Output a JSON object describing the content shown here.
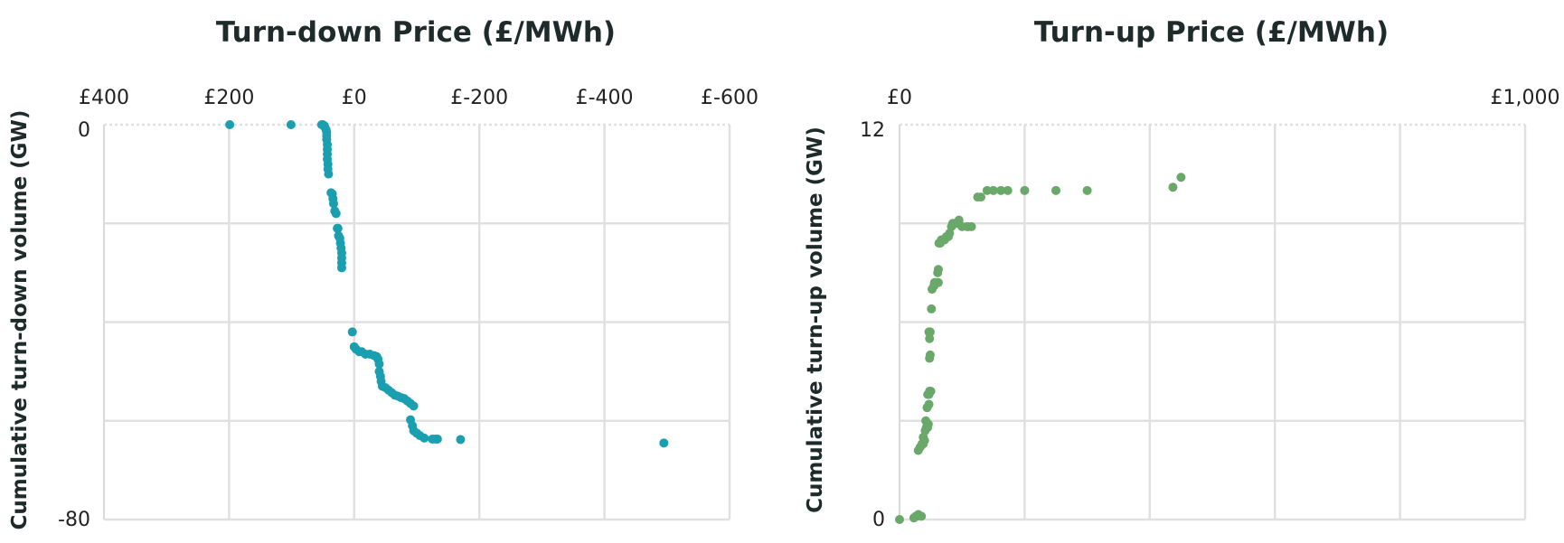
{
  "chart_data": [
    {
      "type": "scatter",
      "title": "Turn-down Price (£/MWh)",
      "ylabel": "Cumulative turn-down volume (GW)",
      "xlim": [
        400,
        -600
      ],
      "x_reversed": true,
      "ylim": [
        -80,
        0
      ],
      "x_ticks": [
        400,
        200,
        0,
        -200,
        -400,
        -600
      ],
      "x_tick_labels": [
        "£400",
        "£200",
        "£0",
        "£-200",
        "£-400",
        "£-600"
      ],
      "y_tick_labels": [
        "0",
        "-80"
      ],
      "grid": true,
      "color": "#1a9fb1",
      "points": [
        [
          199,
          0
        ],
        [
          101,
          0
        ],
        [
          52,
          0
        ],
        [
          50,
          0
        ],
        [
          48,
          -0.2
        ],
        [
          47,
          -0.5
        ],
        [
          45,
          -1
        ],
        [
          44,
          -1.5
        ],
        [
          44,
          -2.2
        ],
        [
          44,
          -3
        ],
        [
          43,
          -4
        ],
        [
          43,
          -5
        ],
        [
          43,
          -6
        ],
        [
          43,
          -7
        ],
        [
          42,
          -8
        ],
        [
          42,
          -9
        ],
        [
          41,
          -10
        ],
        [
          37,
          -13.8
        ],
        [
          35,
          -14
        ],
        [
          34,
          -15
        ],
        [
          33,
          -16
        ],
        [
          31,
          -17.5
        ],
        [
          29,
          -18
        ],
        [
          27,
          -21
        ],
        [
          26,
          -21
        ],
        [
          25,
          -22.5
        ],
        [
          23,
          -23
        ],
        [
          22,
          -24
        ],
        [
          21,
          -25
        ],
        [
          20,
          -26
        ],
        [
          20,
          -27
        ],
        [
          20,
          -28
        ],
        [
          20,
          -29
        ],
        [
          3,
          -42
        ],
        [
          0,
          -45
        ],
        [
          -3,
          -45.5
        ],
        [
          -8,
          -46
        ],
        [
          -12,
          -46
        ],
        [
          -18,
          -46.5
        ],
        [
          -25,
          -46.5
        ],
        [
          -32,
          -46.8
        ],
        [
          -36,
          -47
        ],
        [
          -38,
          -47.5
        ],
        [
          -40,
          -48.5
        ],
        [
          -40,
          -50
        ],
        [
          -42,
          -51
        ],
        [
          -43,
          -52
        ],
        [
          -45,
          -53
        ],
        [
          -50,
          -53.3
        ],
        [
          -55,
          -53.8
        ],
        [
          -60,
          -54.3
        ],
        [
          -65,
          -54.8
        ],
        [
          -70,
          -55
        ],
        [
          -75,
          -55.3
        ],
        [
          -80,
          -55.5
        ],
        [
          -85,
          -56
        ],
        [
          -90,
          -56.5
        ],
        [
          -95,
          -57
        ],
        [
          -90,
          -59.8
        ],
        [
          -93,
          -61
        ],
        [
          -95,
          -62
        ],
        [
          -100,
          -62.5
        ],
        [
          -105,
          -63
        ],
        [
          -112,
          -63.5
        ],
        [
          -125,
          -63.7
        ],
        [
          -130,
          -63.7
        ],
        [
          -133,
          -63.7
        ],
        [
          -170,
          -63.8
        ],
        [
          -495,
          -64.5
        ]
      ]
    },
    {
      "type": "scatter",
      "title": "Turn-up Price (£/MWh)",
      "ylabel": "Cumulative turn-up volume (GW)",
      "xlim": [
        0,
        1000
      ],
      "ylim": [
        0,
        12
      ],
      "x_ticks": [
        0,
        1000
      ],
      "x_tick_labels": [
        "£0",
        "£1,000"
      ],
      "y_tick_labels": [
        "12",
        "0"
      ],
      "grid": true,
      "color": "#6aa86a",
      "points": [
        [
          0,
          0
        ],
        [
          23,
          0.05
        ],
        [
          26,
          0.1
        ],
        [
          30,
          0.15
        ],
        [
          35,
          0.1
        ],
        [
          28,
          0.1
        ],
        [
          30,
          2.1
        ],
        [
          33,
          2.2
        ],
        [
          36,
          2.3
        ],
        [
          38,
          2.3
        ],
        [
          40,
          2.4
        ],
        [
          38,
          2.5
        ],
        [
          41,
          2.7
        ],
        [
          43,
          2.8
        ],
        [
          45,
          2.8
        ],
        [
          46,
          2.9
        ],
        [
          42,
          3
        ],
        [
          44,
          3.4
        ],
        [
          47,
          3.5
        ],
        [
          45,
          3.8
        ],
        [
          47,
          3.8
        ],
        [
          48,
          3.9
        ],
        [
          50,
          3.9
        ],
        [
          48,
          4.9
        ],
        [
          49,
          5
        ],
        [
          48,
          5.5
        ],
        [
          47,
          5.7
        ],
        [
          49,
          5.7
        ],
        [
          51,
          6.4
        ],
        [
          52,
          7
        ],
        [
          55,
          7.1
        ],
        [
          56,
          7.2
        ],
        [
          57,
          7.2
        ],
        [
          60,
          7.2
        ],
        [
          62,
          7.2
        ],
        [
          61,
          7.5
        ],
        [
          62,
          7.6
        ],
        [
          63,
          8.4
        ],
        [
          65,
          8.4
        ],
        [
          67,
          8.5
        ],
        [
          68,
          8.5
        ],
        [
          70,
          8.5
        ],
        [
          72,
          8.5
        ],
        [
          75,
          8.6
        ],
        [
          78,
          8.6
        ],
        [
          80,
          8.7
        ],
        [
          83,
          8.9
        ],
        [
          85,
          9.0
        ],
        [
          88,
          9.0
        ],
        [
          90,
          9.0
        ],
        [
          93,
          9.0
        ],
        [
          95,
          9.1
        ],
        [
          100,
          8.9
        ],
        [
          108,
          8.9
        ],
        [
          110,
          8.9
        ],
        [
          115,
          8.9
        ],
        [
          125,
          9.8
        ],
        [
          130,
          9.8
        ],
        [
          140,
          10.0
        ],
        [
          150,
          10.0
        ],
        [
          162,
          10.0
        ],
        [
          173,
          10.0
        ],
        [
          200,
          10.0
        ],
        [
          250,
          10.0
        ],
        [
          300,
          10.0
        ],
        [
          437,
          10.1
        ],
        [
          450,
          10.4
        ]
      ]
    }
  ]
}
